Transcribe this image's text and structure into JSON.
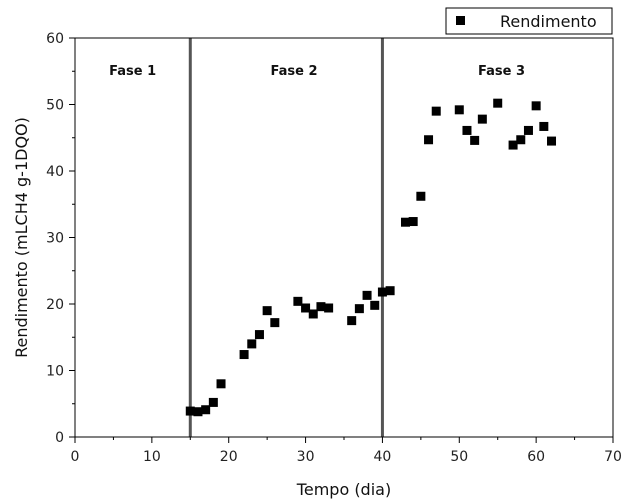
{
  "chart_data": {
    "type": "scatter",
    "xlabel": "Tempo (dia)",
    "ylabel": "Rendimento (mLCH4 g-1DQO)",
    "xlim": [
      0,
      70
    ],
    "ylim": [
      0,
      60
    ],
    "xticks": [
      0,
      10,
      20,
      30,
      40,
      50,
      60,
      70
    ],
    "yticks": [
      0,
      10,
      20,
      30,
      40,
      50,
      60
    ],
    "grid": false,
    "legend_position": "top-right",
    "series": [
      {
        "name": "Rendimento",
        "color": "#000000",
        "marker": "square",
        "points": [
          {
            "x": 15,
            "y": 3.9
          },
          {
            "x": 16,
            "y": 3.8
          },
          {
            "x": 17,
            "y": 4.1
          },
          {
            "x": 18,
            "y": 5.2
          },
          {
            "x": 19,
            "y": 8.0
          },
          {
            "x": 22,
            "y": 12.4
          },
          {
            "x": 23,
            "y": 14.0
          },
          {
            "x": 24,
            "y": 15.4
          },
          {
            "x": 25,
            "y": 19.0
          },
          {
            "x": 26,
            "y": 17.2
          },
          {
            "x": 29,
            "y": 20.4
          },
          {
            "x": 30,
            "y": 19.4
          },
          {
            "x": 31,
            "y": 18.5
          },
          {
            "x": 32,
            "y": 19.6
          },
          {
            "x": 33,
            "y": 19.4
          },
          {
            "x": 36,
            "y": 17.5
          },
          {
            "x": 37,
            "y": 19.3
          },
          {
            "x": 38,
            "y": 21.3
          },
          {
            "x": 39,
            "y": 19.8
          },
          {
            "x": 40,
            "y": 21.8
          },
          {
            "x": 41,
            "y": 22.0
          },
          {
            "x": 43,
            "y": 32.3
          },
          {
            "x": 44,
            "y": 32.4
          },
          {
            "x": 45,
            "y": 36.2
          },
          {
            "x": 46,
            "y": 44.7
          },
          {
            "x": 47,
            "y": 49.0
          },
          {
            "x": 50,
            "y": 49.2
          },
          {
            "x": 51,
            "y": 46.1
          },
          {
            "x": 52,
            "y": 44.6
          },
          {
            "x": 53,
            "y": 47.8
          },
          {
            "x": 55,
            "y": 50.2
          },
          {
            "x": 57,
            "y": 43.9
          },
          {
            "x": 58,
            "y": 44.7
          },
          {
            "x": 59,
            "y": 46.1
          },
          {
            "x": 60,
            "y": 49.8
          },
          {
            "x": 61,
            "y": 46.7
          },
          {
            "x": 62,
            "y": 44.5
          }
        ]
      }
    ],
    "phase_dividers": [
      15,
      40
    ],
    "phase_labels": [
      {
        "text": "Fase 1",
        "x": 7.5,
        "y": 55.2
      },
      {
        "text": "Fase 2",
        "x": 28.5,
        "y": 55.2
      },
      {
        "text": "Fase 3",
        "x": 55.5,
        "y": 55.2
      }
    ],
    "divider_color": "#555555"
  }
}
